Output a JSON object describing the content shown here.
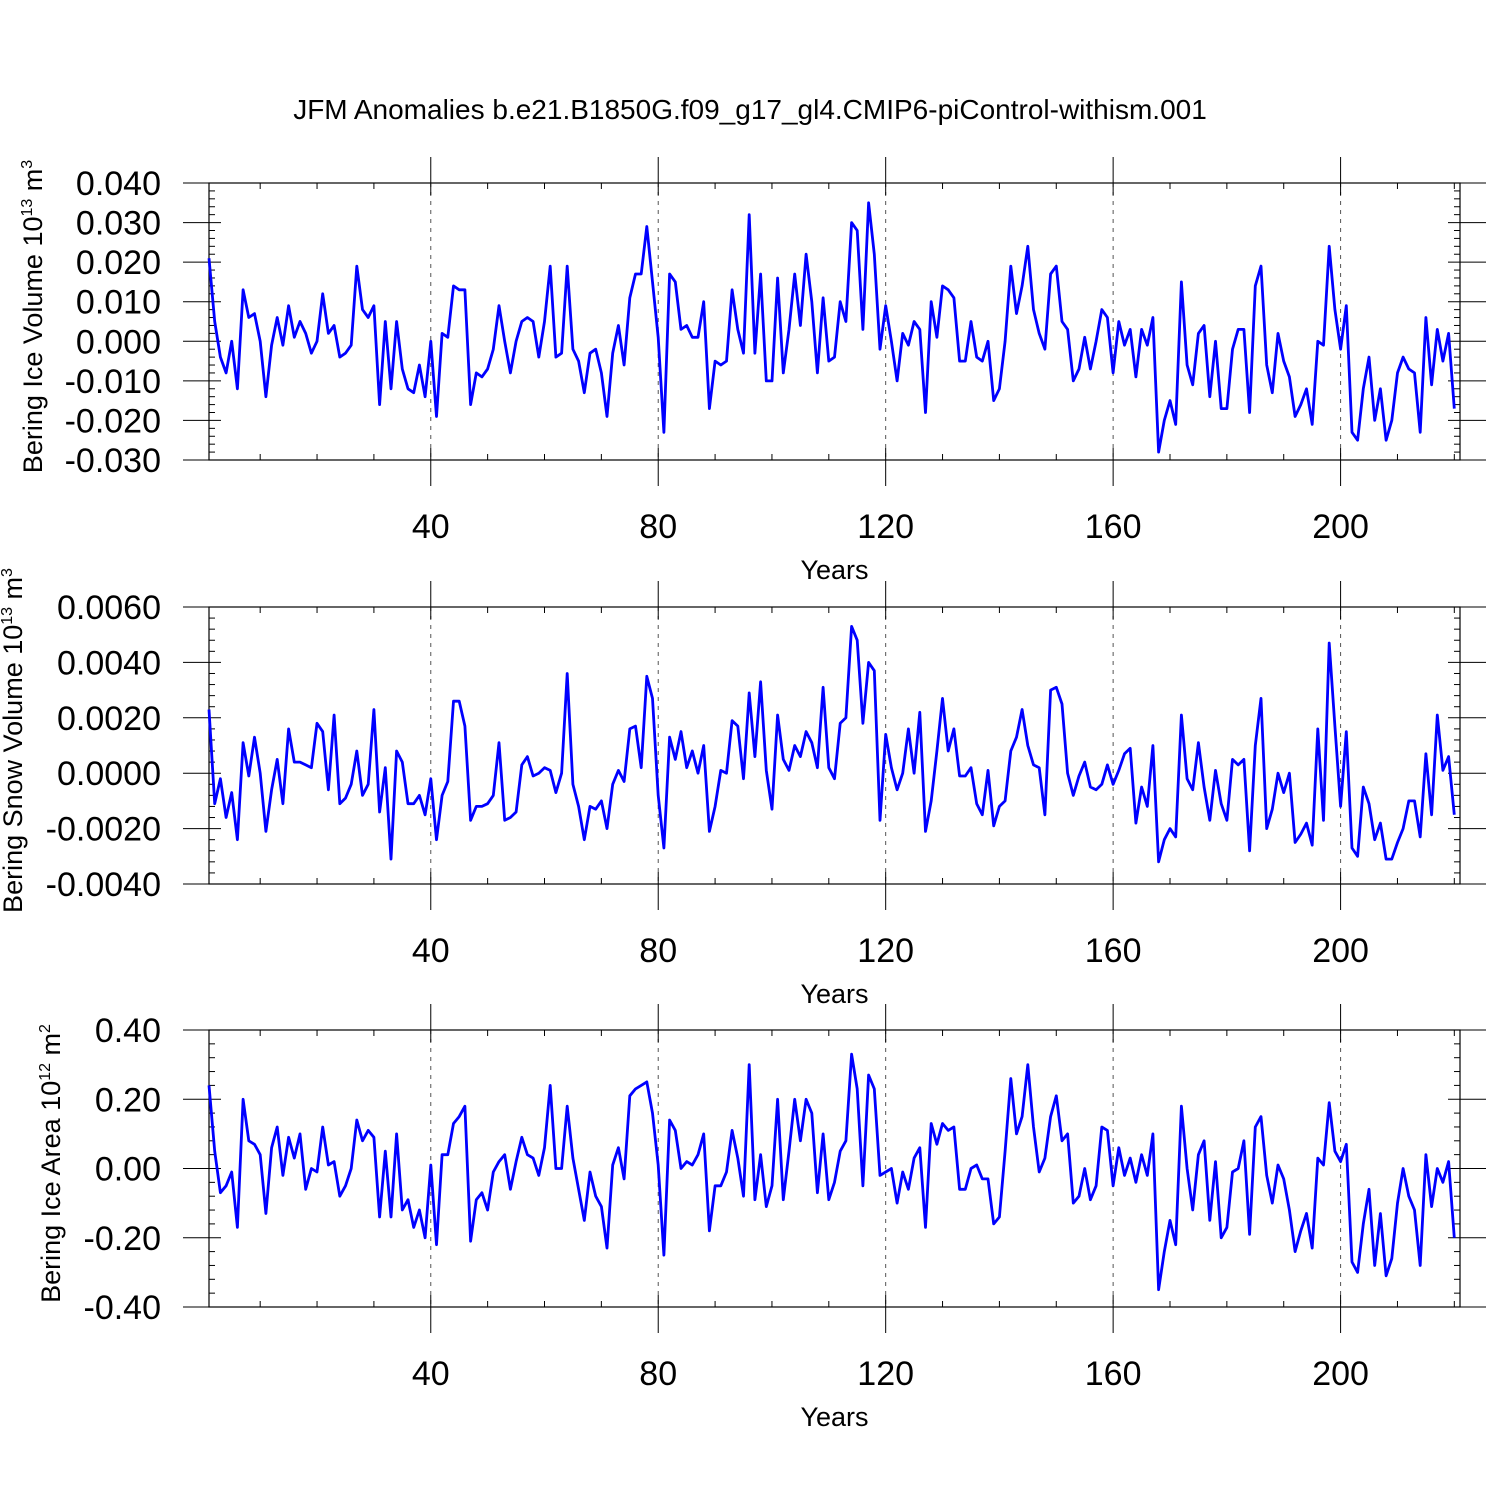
{
  "figure": {
    "title": "JFM Anomalies b.e21.B1850G.f09_g17_gl4.CMIP6-piControl-withism.001"
  },
  "colors": {
    "series": "#0000ff",
    "axis": "#000000",
    "refline": "#555555"
  },
  "chart_data": [
    {
      "type": "line",
      "title": "",
      "xlabel": "Years",
      "ylabel": {
        "prefix": "Bering Ice Volume 10",
        "exp": "13",
        "mid": " m",
        "unit_exp": "3"
      },
      "xlim": [
        1,
        221
      ],
      "ylim": [
        -0.03,
        0.04
      ],
      "grid": false,
      "xticks": [
        40,
        80,
        120,
        160,
        200
      ],
      "yticks": [
        -0.03,
        -0.02,
        -0.01,
        0.0,
        0.01,
        0.02,
        0.03,
        0.04
      ],
      "ytick_labels": [
        "-0.030",
        "-0.020",
        "-0.010",
        "0.000",
        "0.010",
        "0.020",
        "0.030",
        "0.040"
      ],
      "reference_lines_x": [
        40,
        80,
        120,
        160,
        200
      ],
      "series": [
        {
          "name": "",
          "x_start": 1,
          "values": [
            0.021,
            0.005,
            -0.004,
            -0.008,
            0.0,
            -0.012,
            0.013,
            0.006,
            0.007,
            0.0,
            -0.014,
            -0.001,
            0.006,
            -0.001,
            0.009,
            0.001,
            0.005,
            0.002,
            -0.003,
            0.0,
            0.012,
            0.002,
            0.004,
            -0.004,
            -0.003,
            -0.001,
            0.019,
            0.008,
            0.006,
            0.009,
            -0.016,
            0.005,
            -0.012,
            0.005,
            -0.007,
            -0.012,
            -0.013,
            -0.006,
            -0.014,
            0.0,
            -0.019,
            0.002,
            0.001,
            0.014,
            0.013,
            0.013,
            -0.016,
            -0.008,
            -0.009,
            -0.007,
            -0.002,
            0.009,
            0.0,
            -0.008,
            0.0,
            0.005,
            0.006,
            0.005,
            -0.004,
            0.005,
            0.019,
            -0.004,
            -0.003,
            0.019,
            -0.002,
            -0.005,
            -0.013,
            -0.003,
            -0.002,
            -0.008,
            -0.019,
            -0.003,
            0.004,
            -0.006,
            0.011,
            0.017,
            0.017,
            0.029,
            0.015,
            0.001,
            -0.023,
            0.017,
            0.015,
            0.003,
            0.004,
            0.001,
            0.001,
            0.01,
            -0.017,
            -0.005,
            -0.006,
            -0.005,
            0.013,
            0.003,
            -0.003,
            0.032,
            -0.003,
            0.017,
            -0.01,
            -0.01,
            0.016,
            -0.008,
            0.003,
            0.017,
            0.004,
            0.022,
            0.01,
            -0.008,
            0.011,
            -0.005,
            -0.004,
            0.01,
            0.005,
            0.03,
            0.028,
            0.003,
            0.035,
            0.022,
            -0.002,
            0.009,
            0.0,
            -0.01,
            0.002,
            -0.001,
            0.005,
            0.003,
            -0.018,
            0.01,
            0.001,
            0.014,
            0.013,
            0.011,
            -0.005,
            -0.005,
            0.005,
            -0.004,
            -0.005,
            0.0,
            -0.015,
            -0.012,
            0.0,
            0.019,
            0.007,
            0.014,
            0.024,
            0.008,
            0.002,
            -0.002,
            0.017,
            0.019,
            0.005,
            0.003,
            -0.01,
            -0.007,
            0.001,
            -0.007,
            0.0,
            0.008,
            0.006,
            -0.008,
            0.005,
            -0.001,
            0.003,
            -0.009,
            0.003,
            -0.001,
            0.006,
            -0.028,
            -0.02,
            -0.015,
            -0.021,
            0.015,
            -0.006,
            -0.011,
            0.002,
            0.004,
            -0.014,
            0.0,
            -0.017,
            -0.017,
            -0.002,
            0.003,
            0.003,
            -0.018,
            0.014,
            0.019,
            -0.006,
            -0.013,
            0.002,
            -0.005,
            -0.009,
            -0.019,
            -0.016,
            -0.012,
            -0.021,
            0.0,
            -0.001,
            0.024,
            0.008,
            -0.002,
            0.009,
            -0.023,
            -0.025,
            -0.012,
            -0.004,
            -0.02,
            -0.012,
            -0.025,
            -0.02,
            -0.008,
            -0.004,
            -0.007,
            -0.008,
            -0.023,
            0.006,
            -0.011,
            0.003,
            -0.005,
            0.002,
            -0.017
          ]
        }
      ]
    },
    {
      "type": "line",
      "title": "",
      "xlabel": "Years",
      "ylabel": {
        "prefix": "Bering Snow Volume 10",
        "exp": "13",
        "mid": " m",
        "unit_exp": "3"
      },
      "xlim": [
        1,
        221
      ],
      "ylim": [
        -0.004,
        0.006
      ],
      "grid": false,
      "xticks": [
        40,
        80,
        120,
        160,
        200
      ],
      "yticks": [
        -0.004,
        -0.002,
        0.0,
        0.002,
        0.004,
        0.006
      ],
      "ytick_labels": [
        "-0.0040",
        "-0.0020",
        "0.0000",
        "0.0020",
        "0.0040",
        "0.0060"
      ],
      "reference_lines_x": [
        40,
        80,
        120,
        160,
        200
      ],
      "series": [
        {
          "name": "",
          "x_start": 1,
          "values": [
            0.0023,
            -0.0011,
            -0.0002,
            -0.0016,
            -0.0007,
            -0.0024,
            0.0011,
            -0.0001,
            0.0013,
            0.0,
            -0.0021,
            -0.0006,
            0.0005,
            -0.0011,
            0.0016,
            0.0004,
            0.0004,
            0.0003,
            0.0002,
            0.0018,
            0.0015,
            -0.0006,
            0.0021,
            -0.0011,
            -0.0009,
            -0.0004,
            0.0008,
            -0.0008,
            -0.0004,
            0.0023,
            -0.0014,
            0.0002,
            -0.0031,
            0.0008,
            0.0004,
            -0.0011,
            -0.0011,
            -0.0008,
            -0.0015,
            -0.0002,
            -0.0024,
            -0.0008,
            -0.0003,
            0.0026,
            0.0026,
            0.0017,
            -0.0017,
            -0.0012,
            -0.0012,
            -0.0011,
            -0.0008,
            0.0011,
            -0.0017,
            -0.0016,
            -0.0014,
            0.0003,
            0.0006,
            -0.0001,
            0.0,
            0.0002,
            0.0001,
            -0.0007,
            0.0,
            0.0036,
            -0.0004,
            -0.0012,
            -0.0024,
            -0.0012,
            -0.0013,
            -0.001,
            -0.002,
            -0.0004,
            0.0001,
            -0.0003,
            0.0016,
            0.0017,
            0.0002,
            0.0035,
            0.0027,
            -0.0008,
            -0.0027,
            0.0013,
            0.0005,
            0.0015,
            0.0002,
            0.0008,
            0.0,
            0.001,
            -0.0021,
            -0.0012,
            0.0001,
            0.0,
            0.0019,
            0.0017,
            -0.0002,
            0.0029,
            0.0006,
            0.0033,
            0.0001,
            -0.0013,
            0.0021,
            0.0005,
            0.0001,
            0.001,
            0.0006,
            0.0015,
            0.0011,
            0.0002,
            0.0031,
            0.0002,
            -0.0002,
            0.0018,
            0.002,
            0.0053,
            0.0048,
            0.0018,
            0.004,
            0.0037,
            -0.0017,
            0.0014,
            0.0002,
            -0.0006,
            0.0,
            0.0016,
            0.0,
            0.0022,
            -0.0021,
            -0.001,
            0.0008,
            0.0027,
            0.0008,
            0.0016,
            -0.0001,
            -0.0001,
            0.0002,
            -0.0011,
            -0.0015,
            0.0001,
            -0.0019,
            -0.0012,
            -0.001,
            0.0008,
            0.0013,
            0.0023,
            0.001,
            0.0003,
            0.0002,
            -0.0015,
            0.003,
            0.0031,
            0.0025,
            0.0,
            -0.0008,
            -0.0001,
            0.0004,
            -0.0005,
            -0.0006,
            -0.0004,
            0.0003,
            -0.0004,
            0.0001,
            0.0007,
            0.0009,
            -0.0018,
            -0.0005,
            -0.0012,
            0.001,
            -0.0032,
            -0.0024,
            -0.002,
            -0.0023,
            0.0021,
            -0.0002,
            -0.0006,
            0.0011,
            -0.0005,
            -0.0017,
            0.0001,
            -0.0011,
            -0.0017,
            0.0005,
            0.0003,
            0.0005,
            -0.0028,
            0.001,
            0.0027,
            -0.002,
            -0.0013,
            0.0,
            -0.0007,
            0.0,
            -0.0025,
            -0.0022,
            -0.0018,
            -0.0026,
            0.0016,
            -0.0017,
            0.0047,
            0.0017,
            -0.0012,
            0.0015,
            -0.0027,
            -0.003,
            -0.0005,
            -0.0011,
            -0.0024,
            -0.0018,
            -0.0031,
            -0.0031,
            -0.0025,
            -0.002,
            -0.001,
            -0.001,
            -0.0023,
            0.0007,
            -0.0015,
            0.0021,
            0.0001,
            0.0006,
            -0.0015
          ]
        }
      ]
    },
    {
      "type": "line",
      "title": "",
      "xlabel": "Years",
      "ylabel": {
        "prefix": "Bering Ice Area 10",
        "exp": "12",
        "mid": " m",
        "unit_exp": "2"
      },
      "xlim": [
        1,
        221
      ],
      "ylim": [
        -0.4,
        0.4
      ],
      "grid": false,
      "xticks": [
        40,
        80,
        120,
        160,
        200
      ],
      "yticks": [
        -0.4,
        -0.2,
        0.0,
        0.2,
        0.4
      ],
      "ytick_labels": [
        "-0.40",
        "-0.20",
        "0.00",
        "0.20",
        "0.40"
      ],
      "reference_lines_x": [
        40,
        80,
        120,
        160,
        200
      ],
      "series": [
        {
          "name": "",
          "x_start": 1,
          "values": [
            0.24,
            0.05,
            -0.07,
            -0.05,
            -0.01,
            -0.17,
            0.2,
            0.08,
            0.07,
            0.04,
            -0.13,
            0.06,
            0.12,
            -0.02,
            0.09,
            0.03,
            0.1,
            -0.06,
            0.0,
            -0.01,
            0.12,
            0.01,
            0.02,
            -0.08,
            -0.05,
            0.0,
            0.14,
            0.08,
            0.11,
            0.09,
            -0.14,
            0.05,
            -0.14,
            0.1,
            -0.12,
            -0.09,
            -0.17,
            -0.12,
            -0.2,
            0.01,
            -0.22,
            0.04,
            0.04,
            0.13,
            0.15,
            0.18,
            -0.21,
            -0.09,
            -0.07,
            -0.12,
            -0.01,
            0.02,
            0.04,
            -0.06,
            0.02,
            0.09,
            0.04,
            0.03,
            -0.02,
            0.06,
            0.24,
            0.0,
            0.0,
            0.18,
            0.03,
            -0.06,
            -0.15,
            -0.01,
            -0.08,
            -0.11,
            -0.23,
            0.01,
            0.06,
            -0.03,
            0.21,
            0.23,
            0.24,
            0.25,
            0.16,
            0.01,
            -0.25,
            0.14,
            0.11,
            0.0,
            0.02,
            0.01,
            0.04,
            0.1,
            -0.18,
            -0.05,
            -0.05,
            -0.01,
            0.11,
            0.03,
            -0.08,
            0.3,
            -0.09,
            0.04,
            -0.11,
            -0.05,
            0.2,
            -0.09,
            0.05,
            0.2,
            0.08,
            0.2,
            0.16,
            -0.07,
            0.1,
            -0.09,
            -0.04,
            0.05,
            0.08,
            0.33,
            0.23,
            -0.05,
            0.27,
            0.23,
            -0.02,
            -0.01,
            0.0,
            -0.1,
            -0.01,
            -0.06,
            0.03,
            0.06,
            -0.17,
            0.13,
            0.07,
            0.13,
            0.11,
            0.12,
            -0.06,
            -0.06,
            0.0,
            0.01,
            -0.03,
            -0.03,
            -0.16,
            -0.14,
            0.05,
            0.26,
            0.1,
            0.15,
            0.3,
            0.12,
            -0.01,
            0.03,
            0.15,
            0.21,
            0.08,
            0.1,
            -0.1,
            -0.08,
            0.0,
            -0.09,
            -0.05,
            0.12,
            0.11,
            -0.05,
            0.06,
            -0.02,
            0.03,
            -0.04,
            0.04,
            -0.02,
            0.1,
            -0.35,
            -0.24,
            -0.15,
            -0.22,
            0.18,
            0.0,
            -0.12,
            0.04,
            0.08,
            -0.15,
            0.02,
            -0.2,
            -0.17,
            -0.01,
            0.0,
            0.08,
            -0.19,
            0.12,
            0.15,
            -0.02,
            -0.1,
            0.01,
            -0.03,
            -0.12,
            -0.24,
            -0.18,
            -0.13,
            -0.23,
            0.03,
            0.01,
            0.19,
            0.05,
            0.02,
            0.07,
            -0.27,
            -0.3,
            -0.16,
            -0.06,
            -0.28,
            -0.13,
            -0.31,
            -0.26,
            -0.1,
            0.0,
            -0.08,
            -0.12,
            -0.28,
            0.04,
            -0.11,
            0.0,
            -0.04,
            0.02,
            -0.2
          ]
        }
      ]
    }
  ]
}
